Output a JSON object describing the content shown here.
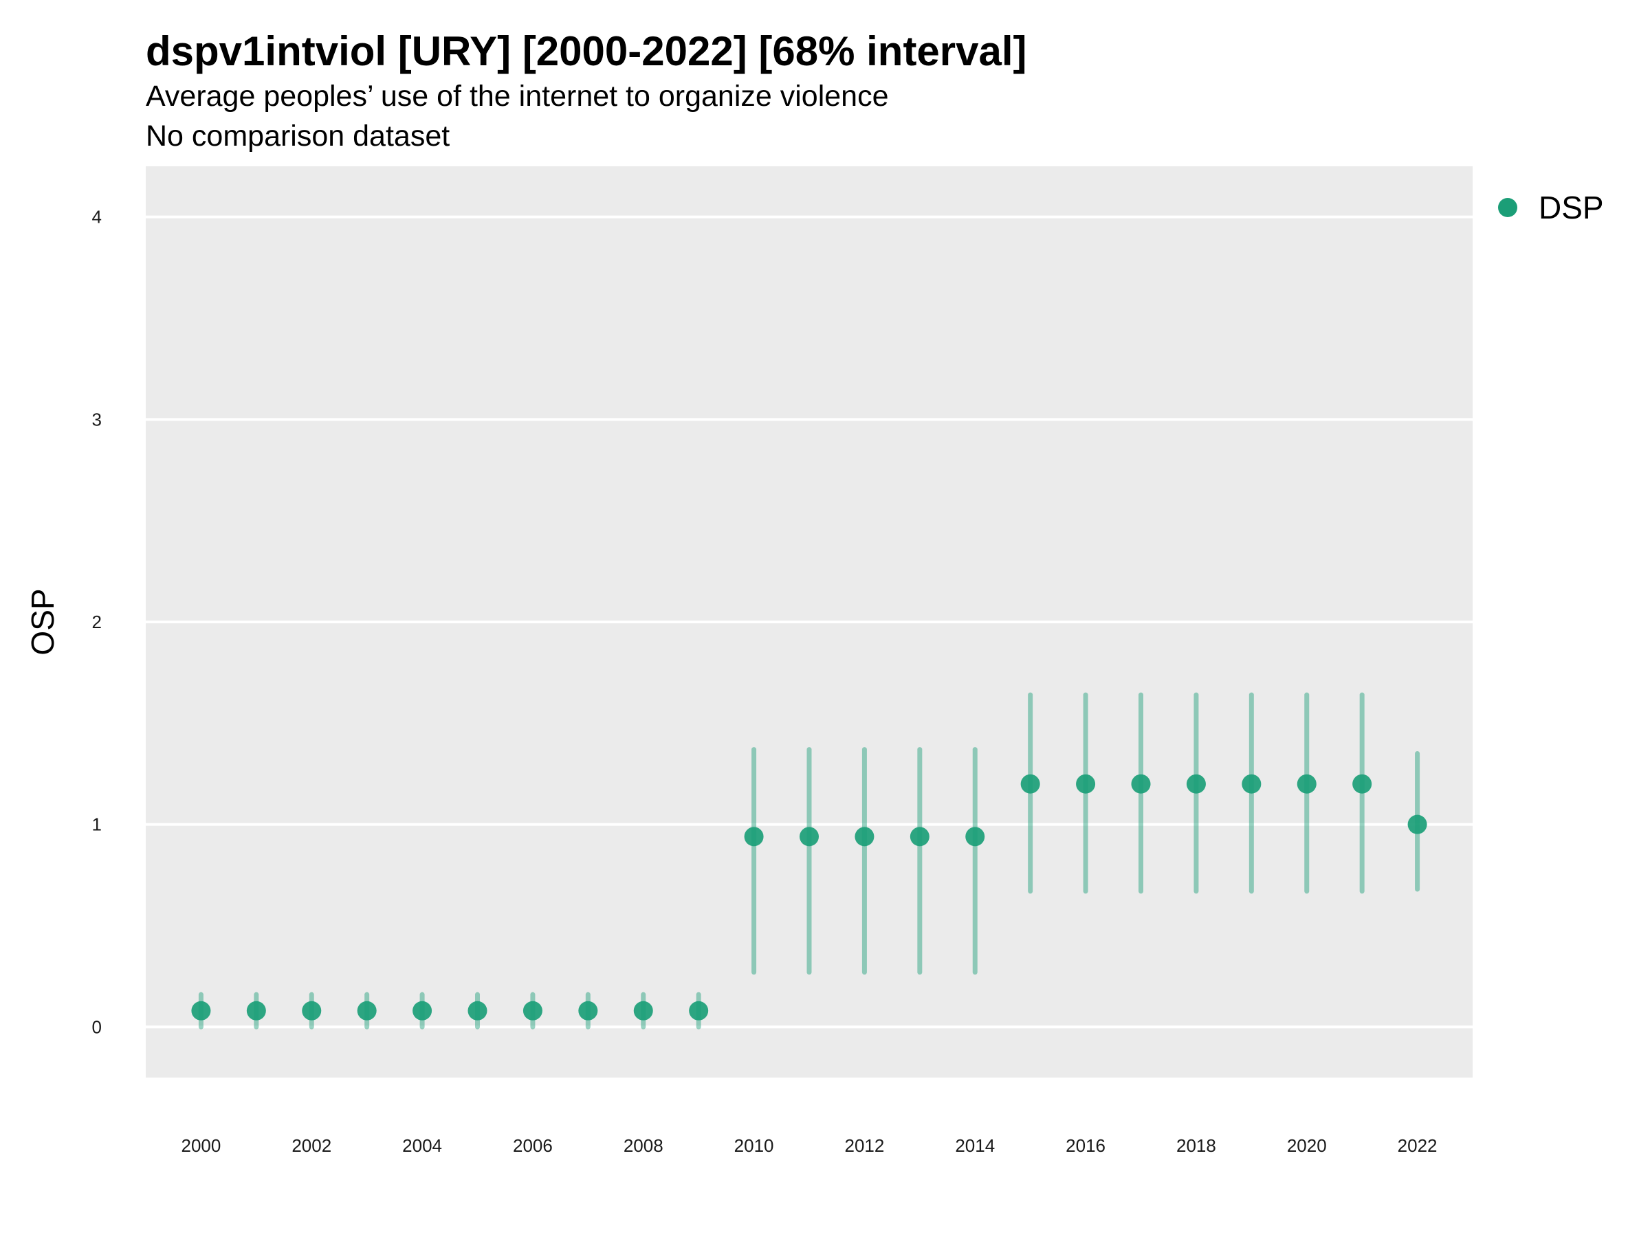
{
  "chart_data": {
    "type": "scatter",
    "title": "dspv1intviol [URY] [2000-2022] [68% interval]",
    "subtitle": "Average peoples’ use of the internet to organize violence",
    "subtitle2": "No comparison dataset",
    "xlabel": "",
    "ylabel": "OSP",
    "xlim": [
      1999,
      2023
    ],
    "ylim": [
      -0.25,
      4.25
    ],
    "y_ticks": [
      0,
      1,
      2,
      3,
      4
    ],
    "x_ticks": [
      2000,
      2002,
      2004,
      2006,
      2008,
      2010,
      2012,
      2014,
      2016,
      2018,
      2020,
      2022
    ],
    "grid": true,
    "legend_position": "right-top",
    "colors": {
      "series": "#1b9e77",
      "panel": "#ebebeb",
      "grid": "#ffffff"
    },
    "series": [
      {
        "name": "DSP",
        "x": [
          2000,
          2001,
          2002,
          2003,
          2004,
          2005,
          2006,
          2007,
          2008,
          2009,
          2010,
          2011,
          2012,
          2013,
          2014,
          2015,
          2016,
          2017,
          2018,
          2019,
          2020,
          2021,
          2022
        ],
        "y": [
          0.08,
          0.08,
          0.08,
          0.08,
          0.08,
          0.08,
          0.08,
          0.08,
          0.08,
          0.08,
          0.94,
          0.94,
          0.94,
          0.94,
          0.94,
          1.2,
          1.2,
          1.2,
          1.2,
          1.2,
          1.2,
          1.2,
          1.0
        ],
        "lower": [
          0.0,
          0.0,
          0.0,
          0.0,
          0.0,
          0.0,
          0.0,
          0.0,
          0.0,
          0.0,
          0.27,
          0.27,
          0.27,
          0.27,
          0.27,
          0.67,
          0.67,
          0.67,
          0.67,
          0.67,
          0.67,
          0.67,
          0.68
        ],
        "upper": [
          0.16,
          0.16,
          0.16,
          0.16,
          0.16,
          0.16,
          0.16,
          0.16,
          0.16,
          0.16,
          1.37,
          1.37,
          1.37,
          1.37,
          1.37,
          1.64,
          1.64,
          1.64,
          1.64,
          1.64,
          1.64,
          1.64,
          1.35
        ]
      }
    ]
  }
}
